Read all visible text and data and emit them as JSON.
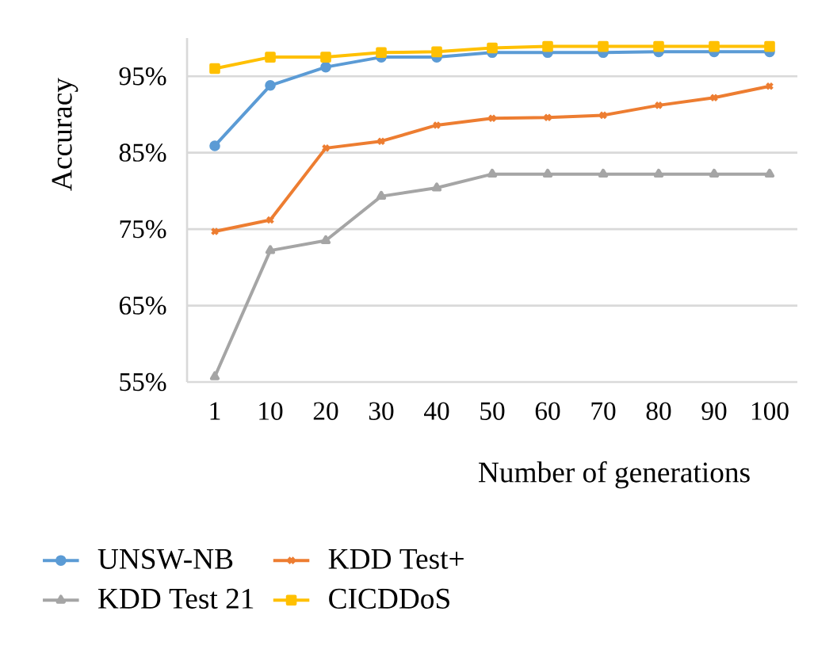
{
  "chart_data": {
    "type": "line",
    "xlabel": "Number of generations",
    "ylabel": "Accuracy",
    "categories": [
      "1",
      "10",
      "20",
      "30",
      "40",
      "50",
      "60",
      "70",
      "80",
      "90",
      "100"
    ],
    "ylim": [
      55,
      100
    ],
    "yticks": [
      {
        "value": 55,
        "label": "55%"
      },
      {
        "value": 65,
        "label": "65%"
      },
      {
        "value": 75,
        "label": "75%"
      },
      {
        "value": 85,
        "label": "85%"
      },
      {
        "value": 95,
        "label": "95%"
      }
    ],
    "grid": "y",
    "legend": "bottom",
    "line_style": "solid",
    "series": [
      {
        "name": "UNSW-NB",
        "color": "#5b9bd5",
        "marker": "circle",
        "values": [
          85.9,
          93.8,
          96.2,
          97.5,
          97.5,
          98.1,
          98.1,
          98.1,
          98.2,
          98.2,
          98.2
        ]
      },
      {
        "name": "KDD Test+",
        "color": "#ed7d31",
        "marker": "cross",
        "values": [
          74.7,
          76.2,
          85.6,
          86.5,
          88.6,
          89.5,
          89.6,
          89.9,
          91.2,
          92.2,
          93.7
        ]
      },
      {
        "name": "KDD Test 21",
        "color": "#a5a5a5",
        "marker": "triangle",
        "values": [
          55.7,
          72.2,
          73.5,
          79.3,
          80.4,
          82.2,
          82.2,
          82.2,
          82.2,
          82.2,
          82.2
        ]
      },
      {
        "name": "CICDDoS",
        "color": "#ffc000",
        "marker": "square",
        "values": [
          96.0,
          97.5,
          97.5,
          98.1,
          98.2,
          98.7,
          98.9,
          98.9,
          98.9,
          98.9,
          98.9
        ]
      }
    ]
  }
}
